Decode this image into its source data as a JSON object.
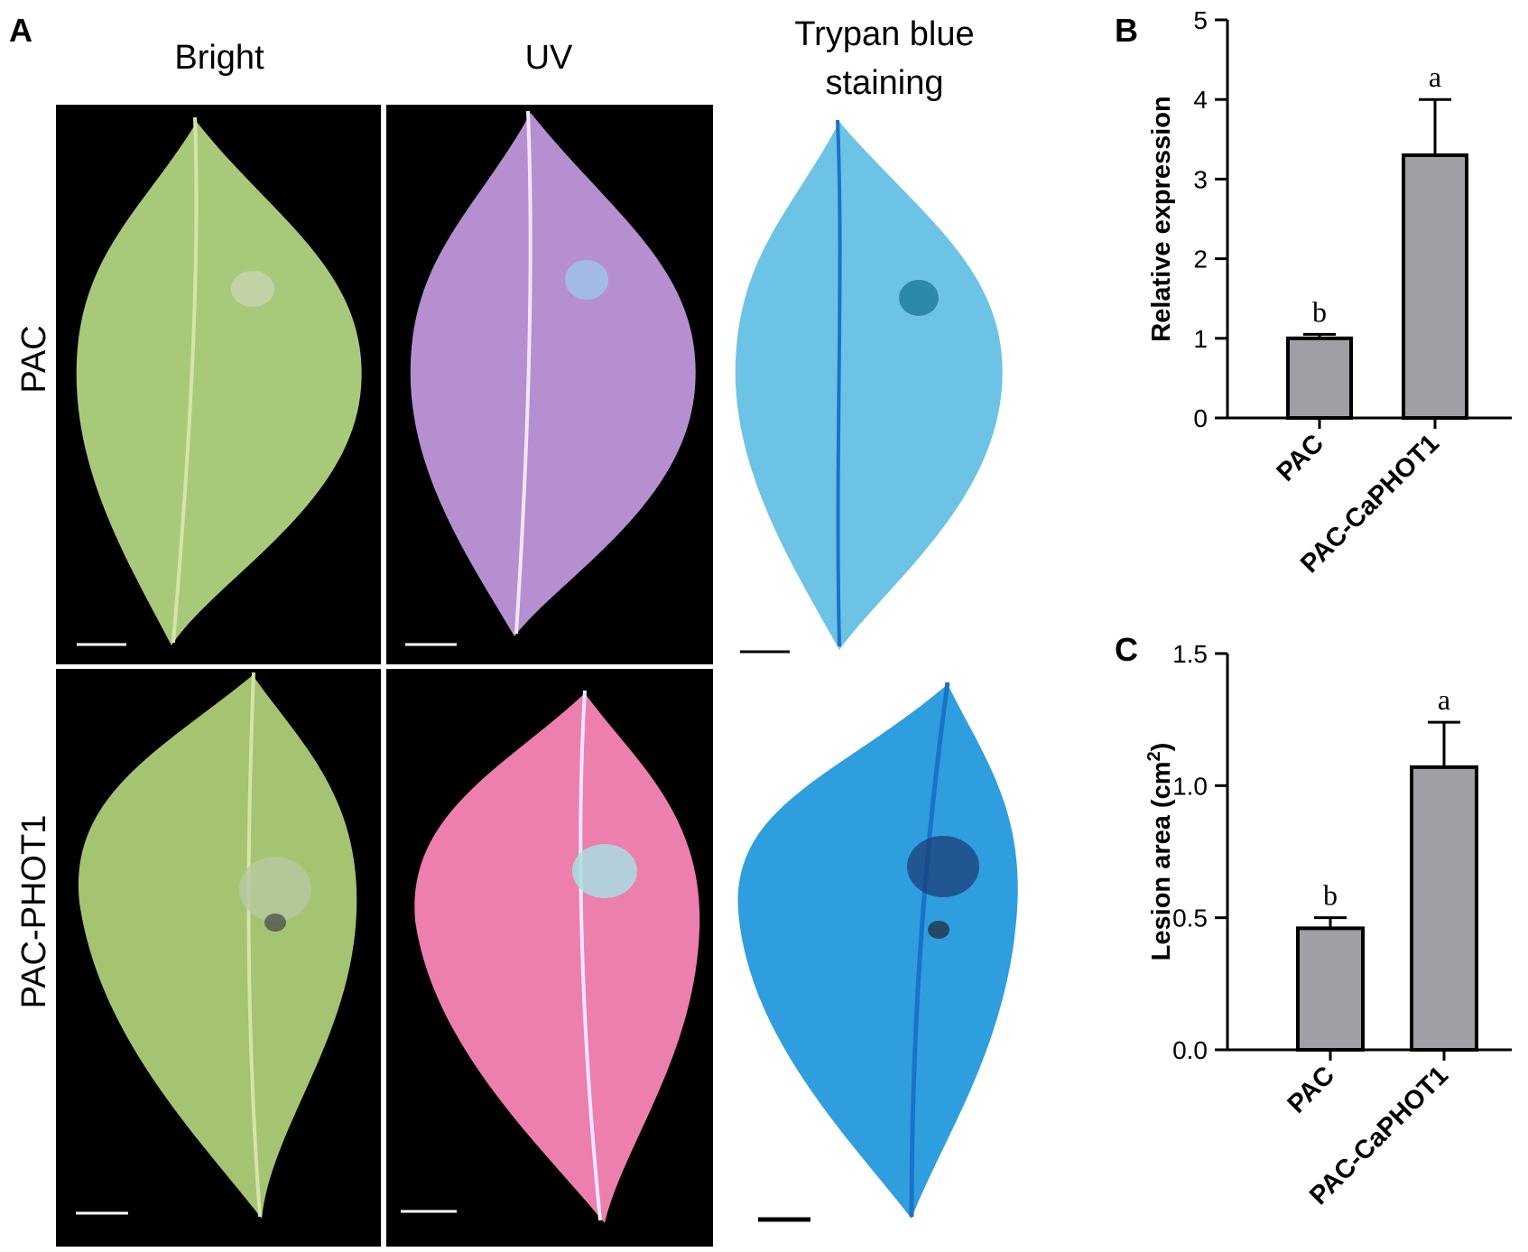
{
  "panel_a": {
    "label": "A",
    "columns": [
      "Bright",
      "UV",
      "Trypan blue",
      "staining"
    ],
    "rows": [
      "PAC",
      "PAC-PHOT1"
    ],
    "colors": {
      "photo_bg": "#000000",
      "bright_leaf": "#a9c97a",
      "bright_vein": "#d6e4a8",
      "uv_leaf_pac": "#b58fd0",
      "uv_leaf_phot": "#ec7fae",
      "uv_vein": "#f2e6ff",
      "trypan_leaf_pac": "#6cc3e6",
      "trypan_leaf_phot": "#2e9ede",
      "trypan_vein": "#1b72c8",
      "scale_bar_photo": "#ffffff",
      "scale_bar_white": "#000000"
    }
  },
  "panel_b": {
    "label": "B"
  },
  "panel_c": {
    "label": "C"
  },
  "chart_data": [
    {
      "type": "bar",
      "panel": "B",
      "categories": [
        "PAC",
        "PAC-CaPHOT1"
      ],
      "values": [
        1.0,
        3.3
      ],
      "errors": [
        0.05,
        0.7
      ],
      "significance": [
        "b",
        "a"
      ],
      "ylabel": "Relative expression",
      "ylim": [
        0,
        5
      ],
      "yticks": [
        "0",
        "1",
        "2",
        "3",
        "4",
        "5"
      ],
      "bar_color": "#a0a0a4"
    },
    {
      "type": "bar",
      "panel": "C",
      "categories": [
        "PAC",
        "PAC-CaPHOT1"
      ],
      "values": [
        0.46,
        1.07
      ],
      "errors": [
        0.04,
        0.17
      ],
      "significance": [
        "b",
        "a"
      ],
      "ylabel": "Lesion area (cm",
      "ylabel_sup": "2",
      "ylabel_end": ")",
      "ylim": [
        0,
        1.5
      ],
      "yticks": [
        "0.0",
        "0.5",
        "1.0",
        "1.5"
      ],
      "bar_color": "#a0a0a4"
    }
  ]
}
